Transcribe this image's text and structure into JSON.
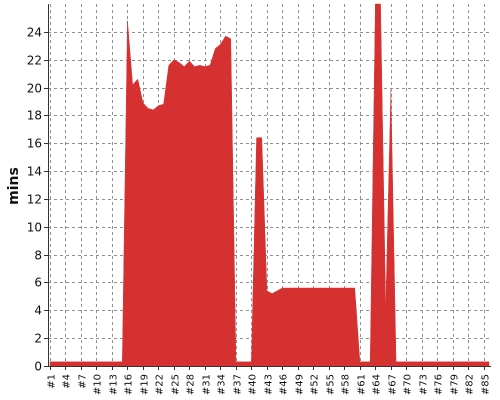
{
  "chart_data": {
    "type": "area",
    "title": "",
    "xlabel": "",
    "ylabel": "mins",
    "ylim": [
      0,
      26
    ],
    "grid": true,
    "legend": "none",
    "color": "#d63131",
    "x_tick_labels": [
      "#1",
      "#4",
      "#7",
      "#10",
      "#13",
      "#16",
      "#19",
      "#22",
      "#25",
      "#28",
      "#31",
      "#34",
      "#37",
      "#40",
      "#43",
      "#46",
      "#49",
      "#52",
      "#55",
      "#58",
      "#61",
      "#64",
      "#67",
      "#70",
      "#73",
      "#76",
      "#79",
      "#82",
      "#85"
    ],
    "y_ticks": [
      0,
      2,
      4,
      6,
      8,
      10,
      12,
      14,
      16,
      18,
      20,
      22,
      24
    ],
    "series": [
      {
        "values": [
          0.3,
          0.3,
          0.3,
          0.3,
          0.3,
          0.3,
          0.3,
          0.3,
          0.3,
          0.3,
          0.3,
          0.3,
          0.3,
          0.3,
          0.3,
          24.8,
          20.2,
          20.6,
          18.9,
          18.5,
          18.4,
          18.7,
          18.8,
          21.6,
          22.0,
          21.8,
          21.5,
          21.9,
          21.5,
          21.6,
          21.5,
          21.6,
          22.8,
          23.1,
          23.7,
          23.5,
          0.3,
          0.3,
          0.3,
          0.3,
          16.4,
          16.4,
          5.4,
          5.2,
          5.4,
          5.6,
          5.6,
          5.6,
          5.6,
          5.6,
          5.6,
          5.6,
          5.6,
          5.6,
          5.6,
          5.6,
          5.6,
          5.6,
          5.6,
          5.6,
          0.3,
          0.3,
          0.3,
          26.0,
          26.0,
          4.0,
          19.8,
          0.3,
          0.3,
          0.3,
          0.3,
          0.3,
          0.3,
          0.3,
          0.3,
          0.3,
          0.3,
          0.3,
          0.3,
          0.3,
          0.3,
          0.3,
          0.3,
          0.3,
          0.3,
          0.3
        ]
      }
    ]
  }
}
